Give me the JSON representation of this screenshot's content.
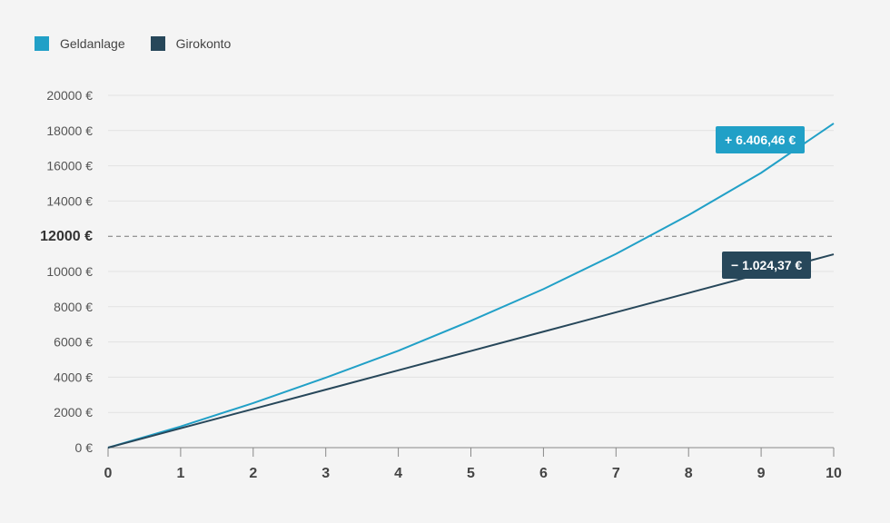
{
  "chart_data": {
    "type": "line",
    "x": [
      0,
      1,
      2,
      3,
      4,
      5,
      6,
      7,
      8,
      9,
      10
    ],
    "series": [
      {
        "name": "Geldanlage",
        "color": "#21a0c7",
        "values": [
          0,
          1200,
          2530,
          3970,
          5500,
          7200,
          9000,
          11000,
          13200,
          15600,
          18406.46
        ]
      },
      {
        "name": "Girokonto",
        "color": "#27475a",
        "values": [
          0,
          1097.56,
          2195.13,
          3292.69,
          4390.25,
          5487.82,
          6585.38,
          7682.94,
          8780.5,
          9878.07,
          10975.63
        ]
      }
    ],
    "ylim": [
      0,
      20000
    ],
    "xlim": [
      0,
      10
    ],
    "yticks": [
      "0 €",
      "2000 €",
      "4000 €",
      "6000 €",
      "8000 €",
      "10000 €",
      "12000 €",
      "14000 €",
      "16000 €",
      "18000 €",
      "20000 €"
    ],
    "xticks": [
      "0",
      "1",
      "2",
      "3",
      "4",
      "5",
      "6",
      "7",
      "8",
      "9",
      "10"
    ],
    "reference_line": {
      "value": 12000,
      "label": "12000 €",
      "style": "dashed"
    },
    "annotations": [
      {
        "series": "Geldanlage",
        "text": "+ 6.406,46 €",
        "color": "#21a0c7"
      },
      {
        "series": "Girokonto",
        "text": "− 1.024,37 €",
        "color": "#27475a"
      }
    ],
    "grid": true,
    "legend": "top-left"
  }
}
